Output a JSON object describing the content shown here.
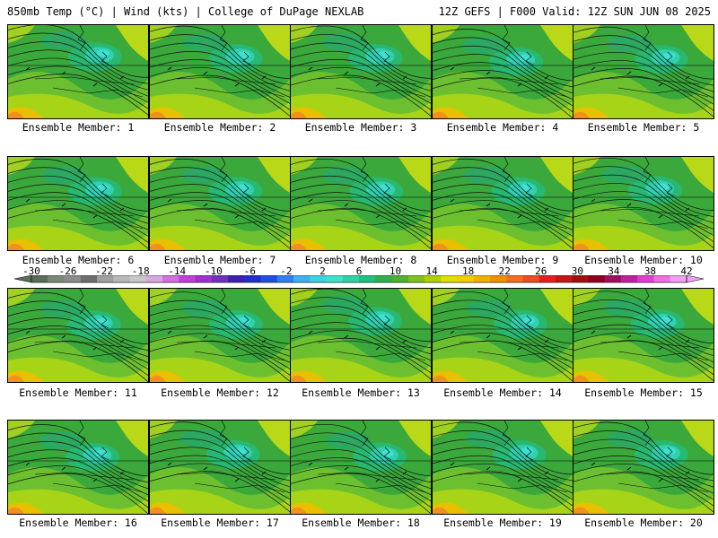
{
  "header": {
    "left": "850mb Temp (°C) | Wind (kts) | College of DuPage NEXLAB",
    "right": "12Z GEFS | F000 Valid: 12Z SUN JUN 08 2025"
  },
  "panels": [
    {
      "caption": "Ensemble Member: 1"
    },
    {
      "caption": "Ensemble Member: 2"
    },
    {
      "caption": "Ensemble Member: 3"
    },
    {
      "caption": "Ensemble Member: 4"
    },
    {
      "caption": "Ensemble Member: 5"
    },
    {
      "caption": "Ensemble Member: 6"
    },
    {
      "caption": "Ensemble Member: 7"
    },
    {
      "caption": "Ensemble Member: 8"
    },
    {
      "caption": "Ensemble Member: 9"
    },
    {
      "caption": "Ensemble Member: 10"
    },
    {
      "caption": "Ensemble Member: 11"
    },
    {
      "caption": "Ensemble Member: 12"
    },
    {
      "caption": "Ensemble Member: 13"
    },
    {
      "caption": "Ensemble Member: 14"
    },
    {
      "caption": "Ensemble Member: 15"
    },
    {
      "caption": "Ensemble Member: 16"
    },
    {
      "caption": "Ensemble Member: 17"
    },
    {
      "caption": "Ensemble Member: 18"
    },
    {
      "caption": "Ensemble Member: 19"
    },
    {
      "caption": "Ensemble Member: 20"
    }
  ],
  "colorbar": {
    "labels": [
      "-30",
      "-26",
      "-22",
      "-18",
      "-14",
      "-10",
      "-6",
      "-2",
      "2",
      "6",
      "10",
      "14",
      "18",
      "22",
      "26",
      "30",
      "34",
      "38",
      "42"
    ],
    "colors": [
      "#5a6e5a",
      "#7a8a7a",
      "#8c8c8c",
      "#6e6e6e",
      "#a0a0a0",
      "#b8b8b8",
      "#c8c8c8",
      "#d6a8e0",
      "#d070e0",
      "#c040d8",
      "#a030d0",
      "#7030c0",
      "#4020b0",
      "#2030c8",
      "#2050e0",
      "#3080f0",
      "#40b0f0",
      "#40d0e0",
      "#40e0c8",
      "#30d0a8",
      "#20c080",
      "#30b050",
      "#50b030",
      "#80c020",
      "#b0d000",
      "#e0e000",
      "#f0d000",
      "#f0b000",
      "#f09000",
      "#f07020",
      "#e85020",
      "#e02020",
      "#c01818",
      "#a01010",
      "#900020",
      "#a01060",
      "#c020a0",
      "#e040d0",
      "#f070e0",
      "#f0a0f0"
    ]
  }
}
